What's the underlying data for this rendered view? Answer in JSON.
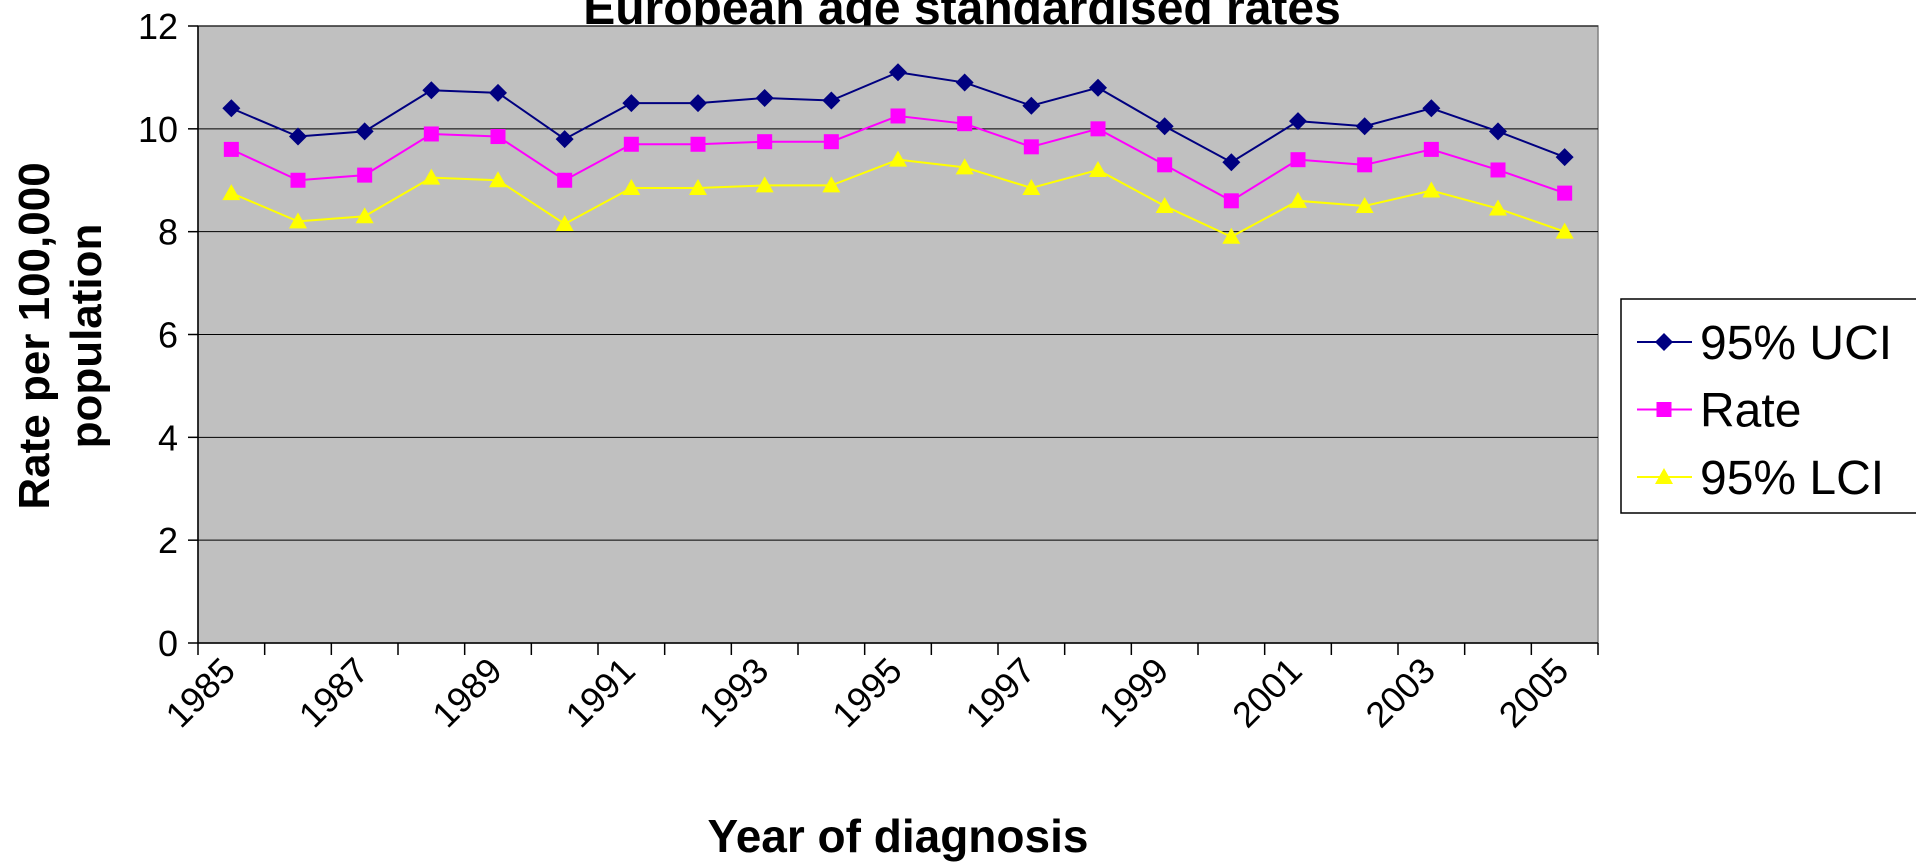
{
  "chart_data": {
    "type": "line",
    "title": "European age standardised rates",
    "x_label": "Year of diagnosis",
    "y_label": "Rate per 100,000 population",
    "categories": [
      "1985",
      null,
      "1987",
      null,
      "1989",
      null,
      "1991",
      null,
      "1993",
      null,
      "1995",
      null,
      "1997",
      null,
      "1999",
      null,
      "2001",
      null,
      "2003",
      null,
      "2005"
    ],
    "series": [
      {
        "name": "95% UCI",
        "color": "#000080",
        "marker": "diamond",
        "values": [
          10.4,
          9.85,
          9.95,
          10.75,
          10.7,
          9.8,
          10.5,
          10.5,
          10.6,
          10.55,
          11.1,
          10.9,
          10.45,
          10.8,
          10.05,
          9.35,
          10.15,
          10.05,
          10.4,
          9.95,
          9.45
        ]
      },
      {
        "name": "Rate",
        "color": "#ff00ff",
        "marker": "square",
        "values": [
          9.6,
          9.0,
          9.1,
          9.9,
          9.85,
          9.0,
          9.7,
          9.7,
          9.75,
          9.75,
          10.25,
          10.1,
          9.65,
          10.0,
          9.3,
          8.6,
          9.4,
          9.3,
          9.6,
          9.2,
          8.75
        ]
      },
      {
        "name": "95% LCI",
        "color": "#ffff00",
        "marker": "triangle",
        "values": [
          8.75,
          8.2,
          8.3,
          9.05,
          9.0,
          8.15,
          8.85,
          8.85,
          8.9,
          8.9,
          9.4,
          9.25,
          8.85,
          9.2,
          8.5,
          7.9,
          8.6,
          8.5,
          8.8,
          8.45,
          8.0
        ]
      }
    ],
    "ylim": [
      0,
      12
    ],
    "yticks": [
      0,
      2,
      4,
      6,
      8,
      10,
      12
    ],
    "grid": true,
    "legend": "right",
    "plot_background": "#c0c0c0"
  }
}
